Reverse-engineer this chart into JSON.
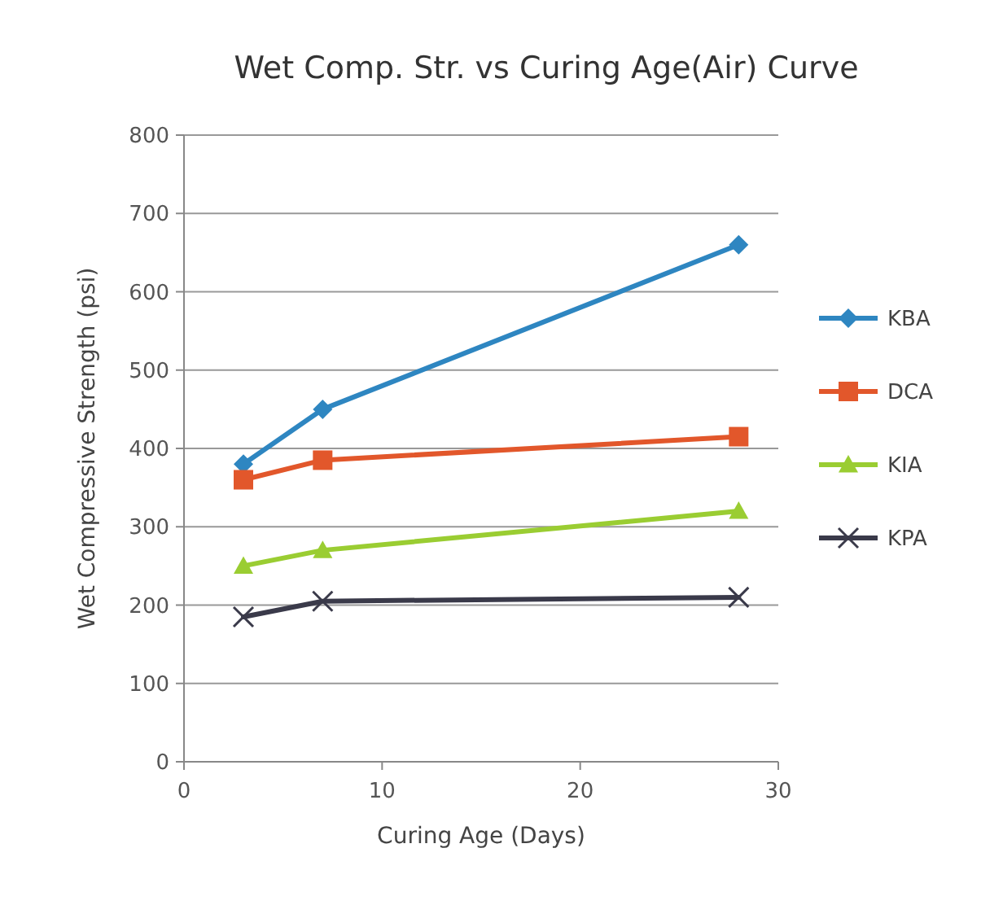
{
  "chart_data": {
    "type": "line",
    "title": "Wet Comp. Str. vs Curing Age(Air) Curve",
    "xlabel": "Curing Age (Days)",
    "ylabel": "Wet Compressive Strength (psi)",
    "x": [
      3,
      7,
      28
    ],
    "xlim": [
      0,
      30
    ],
    "xticks": [
      0,
      10,
      20,
      30
    ],
    "ylim": [
      0,
      800
    ],
    "yticks": [
      0,
      100,
      200,
      300,
      400,
      500,
      600,
      700,
      800
    ],
    "grid": "y",
    "legend": "right",
    "series": [
      {
        "name": "KBA",
        "color": "#2e86c1",
        "marker": "diamond",
        "values": [
          380,
          450,
          660
        ]
      },
      {
        "name": "DCA",
        "color": "#e2572b",
        "marker": "square",
        "values": [
          360,
          385,
          415
        ]
      },
      {
        "name": "KIA",
        "color": "#9acd32",
        "marker": "triangle",
        "values": [
          250,
          270,
          320
        ]
      },
      {
        "name": "KPA",
        "color": "#3a3a4a",
        "marker": "cross",
        "values": [
          185,
          205,
          210
        ]
      }
    ]
  }
}
